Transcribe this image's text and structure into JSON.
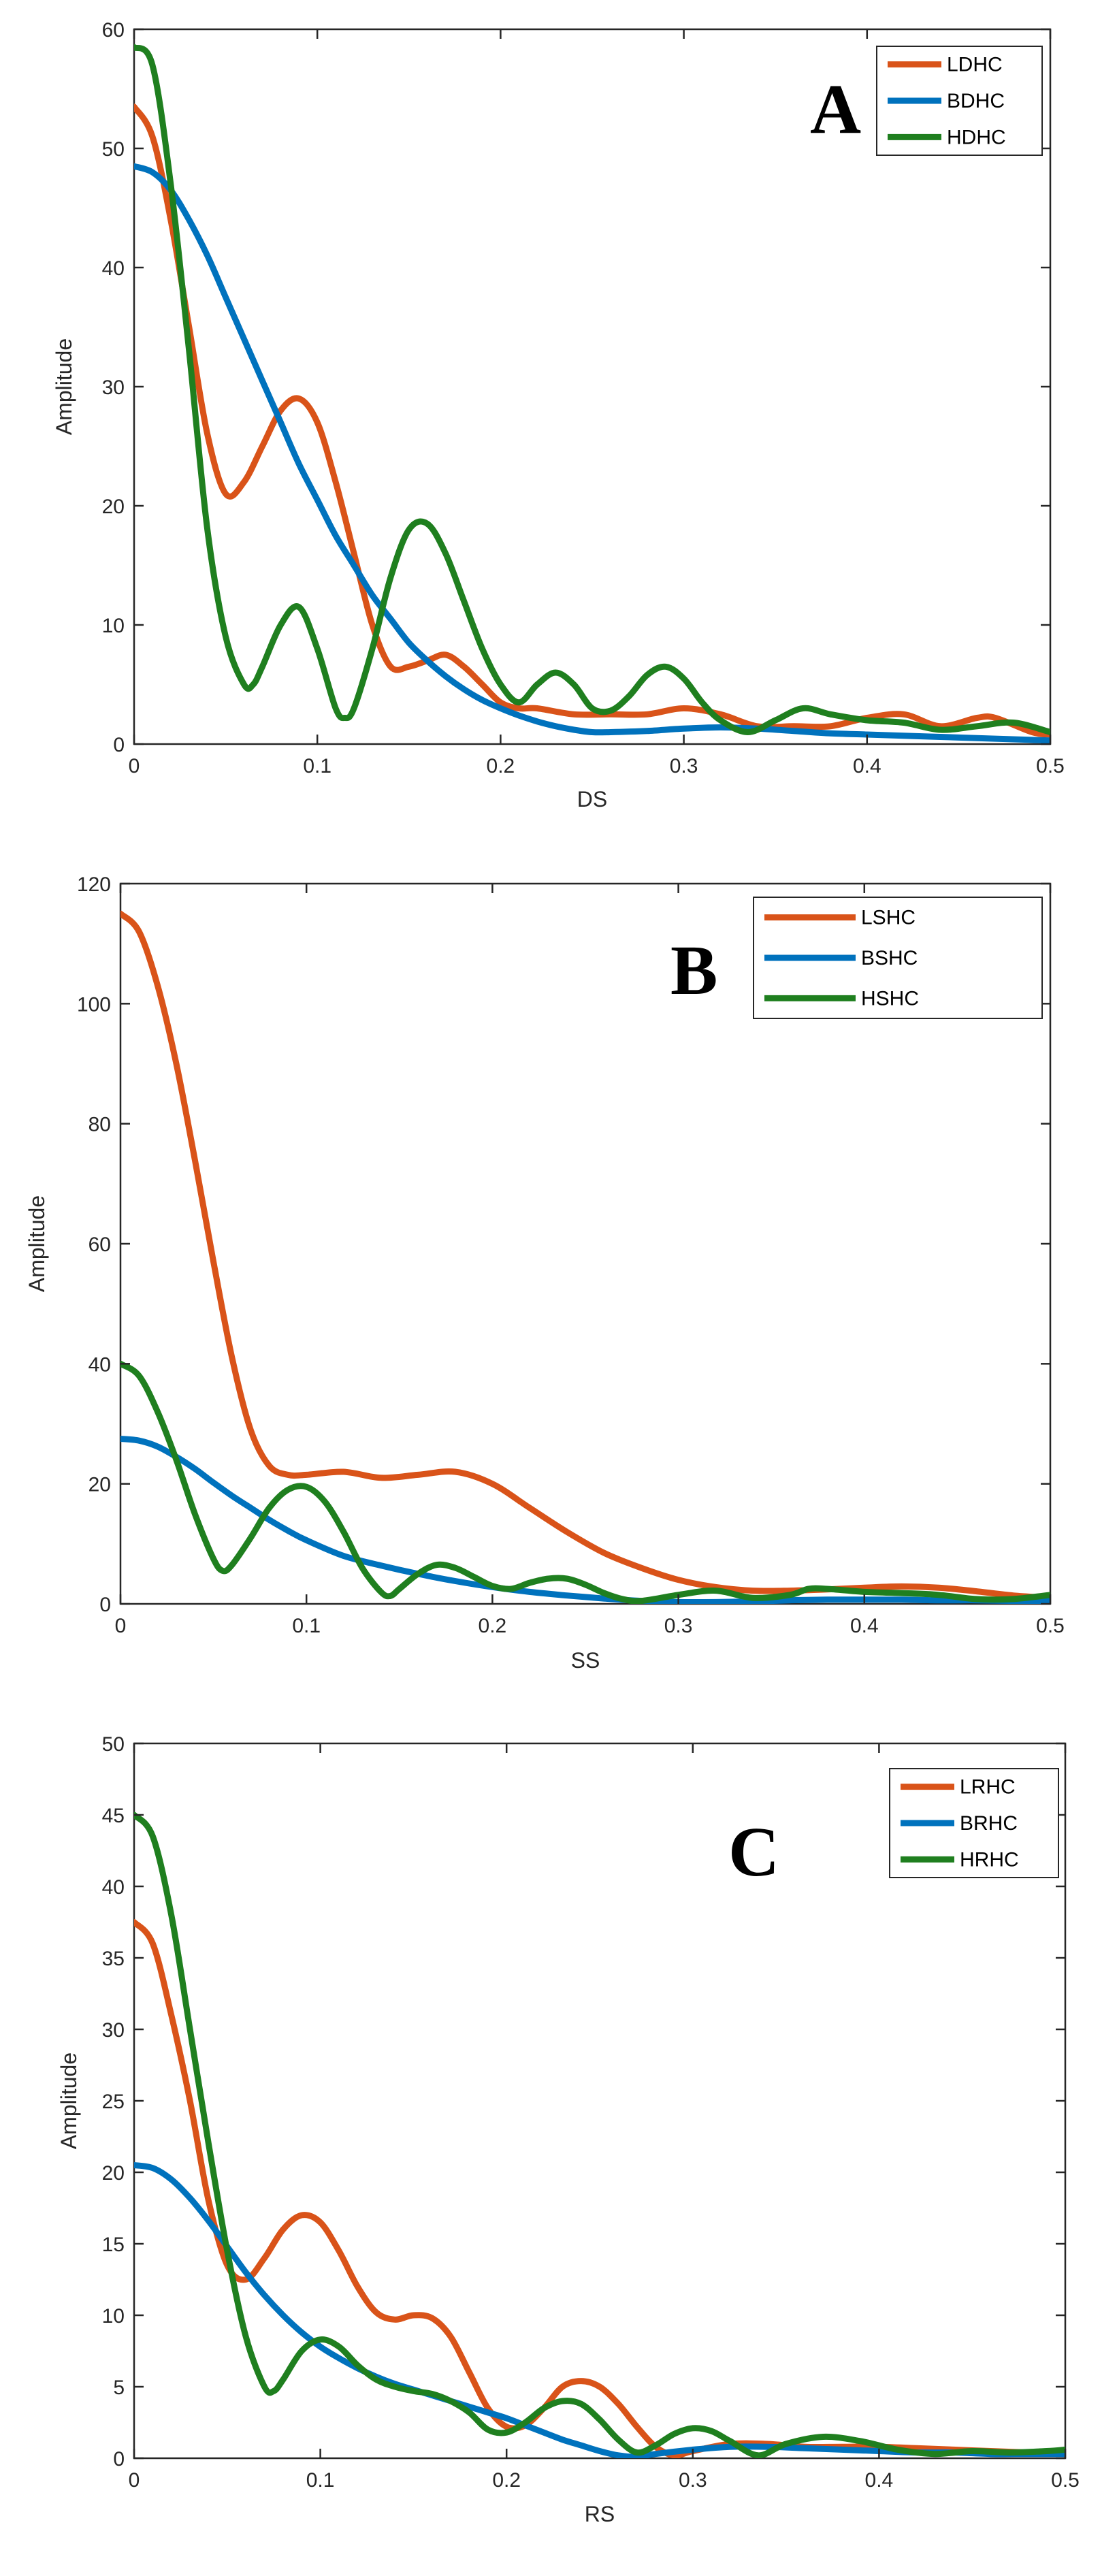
{
  "chart_data": [
    {
      "type": "line",
      "panel_label": "A",
      "xlabel": "DS",
      "ylabel": "Amplitude",
      "xlim": [
        0,
        0.5
      ],
      "ylim": [
        0,
        60
      ],
      "xticks": [
        0,
        0.1,
        0.2,
        0.3,
        0.4,
        0.5
      ],
      "xtick_labels": [
        "0",
        "0.1",
        "0.2",
        "0.3",
        "0.4",
        "0.5"
      ],
      "yticks": [
        0,
        10,
        20,
        30,
        40,
        50,
        60
      ],
      "ytick_labels": [
        "0",
        "10",
        "20",
        "30",
        "40",
        "50",
        "60"
      ],
      "legend_position": "top-right",
      "series": [
        {
          "name": "LDHC",
          "color": "#d95319",
          "x": [
            0,
            0.01,
            0.02,
            0.03,
            0.04,
            0.05,
            0.06,
            0.07,
            0.08,
            0.09,
            0.1,
            0.11,
            0.12,
            0.13,
            0.14,
            0.15,
            0.16,
            0.17,
            0.18,
            0.19,
            0.2,
            0.21,
            0.22,
            0.24,
            0.26,
            0.28,
            0.3,
            0.32,
            0.34,
            0.36,
            0.38,
            0.4,
            0.42,
            0.44,
            0.46,
            0.47,
            0.49,
            0.5
          ],
          "y": [
            53.5,
            51,
            44,
            35,
            26,
            21,
            22,
            25,
            28,
            29,
            27,
            22,
            16,
            10,
            6.5,
            6.5,
            7,
            7.5,
            6.5,
            5,
            3.5,
            3,
            3,
            2.5,
            2.5,
            2.5,
            3,
            2.5,
            1.5,
            1.5,
            1.5,
            2.2,
            2.5,
            1.5,
            2.2,
            2.2,
            1,
            0.8
          ]
        },
        {
          "name": "BDHC",
          "color": "#0072bd",
          "x": [
            0,
            0.01,
            0.02,
            0.03,
            0.04,
            0.05,
            0.06,
            0.07,
            0.08,
            0.09,
            0.1,
            0.11,
            0.12,
            0.13,
            0.14,
            0.15,
            0.16,
            0.17,
            0.18,
            0.19,
            0.2,
            0.21,
            0.22,
            0.23,
            0.24,
            0.25,
            0.26,
            0.28,
            0.3,
            0.32,
            0.34,
            0.36,
            0.38,
            0.4,
            0.42,
            0.44,
            0.46,
            0.48,
            0.5
          ],
          "y": [
            48.5,
            48,
            46.5,
            44,
            41,
            37.5,
            34,
            30.5,
            27,
            23.5,
            20.5,
            17.5,
            15,
            12.5,
            10.5,
            8.5,
            7,
            5.7,
            4.6,
            3.7,
            3,
            2.4,
            1.9,
            1.5,
            1.2,
            1,
            1,
            1.1,
            1.3,
            1.4,
            1.3,
            1.1,
            0.9,
            0.8,
            0.7,
            0.6,
            0.5,
            0.4,
            0.3
          ]
        },
        {
          "name": "HDHC",
          "color": "#1f7f1f",
          "x": [
            0,
            0.01,
            0.02,
            0.03,
            0.04,
            0.05,
            0.06,
            0.065,
            0.07,
            0.08,
            0.09,
            0.1,
            0.11,
            0.115,
            0.12,
            0.13,
            0.14,
            0.15,
            0.16,
            0.17,
            0.18,
            0.19,
            0.2,
            0.21,
            0.22,
            0.23,
            0.24,
            0.25,
            0.26,
            0.27,
            0.28,
            0.29,
            0.3,
            0.31,
            0.32,
            0.335,
            0.35,
            0.365,
            0.38,
            0.4,
            0.42,
            0.44,
            0.46,
            0.48,
            0.5
          ],
          "y": [
            58.5,
            57,
            47,
            33,
            18,
            9,
            5,
            5,
            6.5,
            10,
            11.5,
            8,
            3,
            2.2,
            3,
            8,
            14,
            18,
            18.5,
            16,
            12,
            8,
            5,
            3.5,
            5,
            6,
            5,
            3,
            2.8,
            4,
            5.8,
            6.5,
            5.5,
            3.5,
            2,
            1,
            2,
            3,
            2.5,
            2,
            1.8,
            1.2,
            1.5,
            1.8,
            1
          ]
        }
      ]
    },
    {
      "type": "line",
      "panel_label": "B",
      "xlabel": "SS",
      "ylabel": "Amplitude",
      "xlim": [
        0,
        0.5
      ],
      "ylim": [
        0,
        120
      ],
      "xticks": [
        0,
        0.1,
        0.2,
        0.3,
        0.4,
        0.5
      ],
      "xtick_labels": [
        "0",
        "0.1",
        "0.2",
        "0.3",
        "0.4",
        "0.5"
      ],
      "yticks": [
        0,
        20,
        40,
        60,
        80,
        100,
        120
      ],
      "ytick_labels": [
        "0",
        "20",
        "40",
        "60",
        "80",
        "100",
        "120"
      ],
      "legend_position": "top-right",
      "series": [
        {
          "name": "LSHC",
          "color": "#d95319",
          "x": [
            0,
            0.01,
            0.02,
            0.03,
            0.04,
            0.05,
            0.06,
            0.07,
            0.08,
            0.09,
            0.1,
            0.12,
            0.14,
            0.16,
            0.18,
            0.2,
            0.22,
            0.24,
            0.26,
            0.28,
            0.3,
            0.32,
            0.34,
            0.36,
            0.38,
            0.4,
            0.42,
            0.44,
            0.46,
            0.48,
            0.5
          ],
          "y": [
            115,
            112,
            103,
            90,
            74,
            57,
            41,
            29,
            23,
            21.5,
            21.5,
            22,
            21,
            21.5,
            22,
            20,
            16,
            12,
            8.5,
            6,
            4,
            2.8,
            2.2,
            2.2,
            2.4,
            2.7,
            2.9,
            2.7,
            2.1,
            1.4,
            1
          ]
        },
        {
          "name": "BSHC",
          "color": "#0072bd",
          "x": [
            0,
            0.01,
            0.02,
            0.03,
            0.04,
            0.05,
            0.06,
            0.07,
            0.08,
            0.09,
            0.1,
            0.12,
            0.14,
            0.16,
            0.18,
            0.2,
            0.22,
            0.24,
            0.26,
            0.28,
            0.3,
            0.32,
            0.34,
            0.36,
            0.38,
            0.4,
            0.42,
            0.44,
            0.46,
            0.48,
            0.5
          ],
          "y": [
            27.5,
            27.2,
            26.2,
            24.5,
            22.5,
            20.2,
            18,
            16,
            14,
            12.2,
            10.6,
            8,
            6.4,
            5,
            3.8,
            2.8,
            2,
            1.4,
            0.9,
            0.5,
            0.3,
            0.3,
            0.4,
            0.6,
            0.7,
            0.7,
            0.7,
            0.6,
            0.6,
            0.5,
            0.5
          ]
        },
        {
          "name": "HSHC",
          "color": "#1f7f1f",
          "x": [
            0,
            0.01,
            0.02,
            0.03,
            0.04,
            0.05,
            0.055,
            0.06,
            0.07,
            0.08,
            0.09,
            0.1,
            0.11,
            0.12,
            0.13,
            0.14,
            0.145,
            0.15,
            0.16,
            0.17,
            0.18,
            0.19,
            0.2,
            0.21,
            0.22,
            0.23,
            0.24,
            0.25,
            0.26,
            0.27,
            0.28,
            0.3,
            0.32,
            0.34,
            0.36,
            0.37,
            0.38,
            0.4,
            0.42,
            0.44,
            0.46,
            0.48,
            0.5
          ],
          "y": [
            40,
            38,
            32,
            24,
            15,
            7.5,
            5.5,
            6.5,
            11,
            16,
            19,
            19.5,
            17,
            12,
            6,
            2,
            1.3,
            2.5,
            5,
            6.5,
            6,
            4.5,
            3,
            2.5,
            3.5,
            4.2,
            4.2,
            3.2,
            1.8,
            0.8,
            0.5,
            1.5,
            2.2,
            1,
            1.5,
            2.5,
            2.5,
            2,
            1.8,
            1.5,
            0.8,
            0.8,
            1.5
          ]
        }
      ]
    },
    {
      "type": "line",
      "panel_label": "C",
      "xlabel": "RS",
      "ylabel": "Amplitude",
      "xlim": [
        0,
        0.5
      ],
      "ylim": [
        0,
        50
      ],
      "xticks": [
        0,
        0.1,
        0.2,
        0.3,
        0.4,
        0.5
      ],
      "xtick_labels": [
        "0",
        "0.1",
        "0.2",
        "0.3",
        "0.4",
        "0.5"
      ],
      "yticks": [
        0,
        5,
        10,
        15,
        20,
        25,
        30,
        35,
        40,
        45,
        50
      ],
      "ytick_labels": [
        "0",
        "5",
        "10",
        "15",
        "20",
        "25",
        "30",
        "35",
        "40",
        "45",
        "50"
      ],
      "legend_position": "top-right",
      "series": [
        {
          "name": "LRHC",
          "color": "#d95319",
          "x": [
            0,
            0.01,
            0.02,
            0.03,
            0.04,
            0.05,
            0.06,
            0.07,
            0.08,
            0.09,
            0.1,
            0.11,
            0.12,
            0.13,
            0.14,
            0.15,
            0.16,
            0.17,
            0.18,
            0.19,
            0.2,
            0.21,
            0.22,
            0.23,
            0.24,
            0.25,
            0.26,
            0.27,
            0.28,
            0.29,
            0.3,
            0.32,
            0.34,
            0.36,
            0.38,
            0.4,
            0.42,
            0.44,
            0.46,
            0.48,
            0.5
          ],
          "y": [
            37.5,
            36,
            31,
            25,
            18,
            13.5,
            12.5,
            14,
            16,
            17,
            16.5,
            14.5,
            12,
            10.2,
            9.7,
            10,
            9.8,
            8.5,
            6,
            3.5,
            2.2,
            2.3,
            3.5,
            5,
            5.4,
            5,
            3.8,
            2.2,
            0.8,
            0.2,
            0.5,
            1,
            1,
            0.8,
            0.8,
            0.8,
            0.7,
            0.6,
            0.5,
            0.4,
            0.3
          ]
        },
        {
          "name": "BRHC",
          "color": "#0072bd",
          "x": [
            0,
            0.01,
            0.02,
            0.03,
            0.04,
            0.05,
            0.06,
            0.07,
            0.08,
            0.09,
            0.1,
            0.11,
            0.12,
            0.13,
            0.14,
            0.15,
            0.16,
            0.17,
            0.18,
            0.19,
            0.2,
            0.21,
            0.22,
            0.23,
            0.24,
            0.25,
            0.26,
            0.27,
            0.28,
            0.3,
            0.32,
            0.34,
            0.36,
            0.38,
            0.4,
            0.42,
            0.44,
            0.46,
            0.48,
            0.5
          ],
          "y": [
            20.5,
            20.3,
            19.5,
            18.2,
            16.6,
            14.8,
            13,
            11.4,
            10,
            8.8,
            7.8,
            7,
            6.3,
            5.7,
            5.2,
            4.8,
            4.4,
            4,
            3.6,
            3.2,
            2.8,
            2.3,
            1.8,
            1.3,
            0.9,
            0.5,
            0.2,
            0.1,
            0.3,
            0.6,
            0.8,
            0.8,
            0.7,
            0.6,
            0.5,
            0.4,
            0.4,
            0.3,
            0.3,
            0.3
          ]
        },
        {
          "name": "HRHC",
          "color": "#1f7f1f",
          "x": [
            0,
            0.01,
            0.02,
            0.03,
            0.04,
            0.05,
            0.06,
            0.07,
            0.075,
            0.08,
            0.09,
            0.1,
            0.11,
            0.12,
            0.13,
            0.14,
            0.15,
            0.16,
            0.17,
            0.18,
            0.19,
            0.2,
            0.21,
            0.22,
            0.23,
            0.24,
            0.25,
            0.26,
            0.27,
            0.28,
            0.29,
            0.3,
            0.31,
            0.32,
            0.335,
            0.35,
            0.37,
            0.39,
            0.41,
            0.43,
            0.45,
            0.47,
            0.49,
            0.5
          ],
          "y": [
            45,
            43.5,
            38,
            30,
            22,
            14.5,
            8.5,
            5,
            4.7,
            5.5,
            7.5,
            8.3,
            7.8,
            6.5,
            5.5,
            5,
            4.7,
            4.5,
            4,
            3.2,
            2,
            1.8,
            2.5,
            3.5,
            4,
            3.8,
            2.7,
            1.3,
            0.4,
            0.9,
            1.7,
            2.1,
            1.9,
            1.2,
            0.2,
            1,
            1.5,
            1.2,
            0.6,
            0.3,
            0.5,
            0.4,
            0.5,
            0.6
          ]
        }
      ]
    }
  ]
}
